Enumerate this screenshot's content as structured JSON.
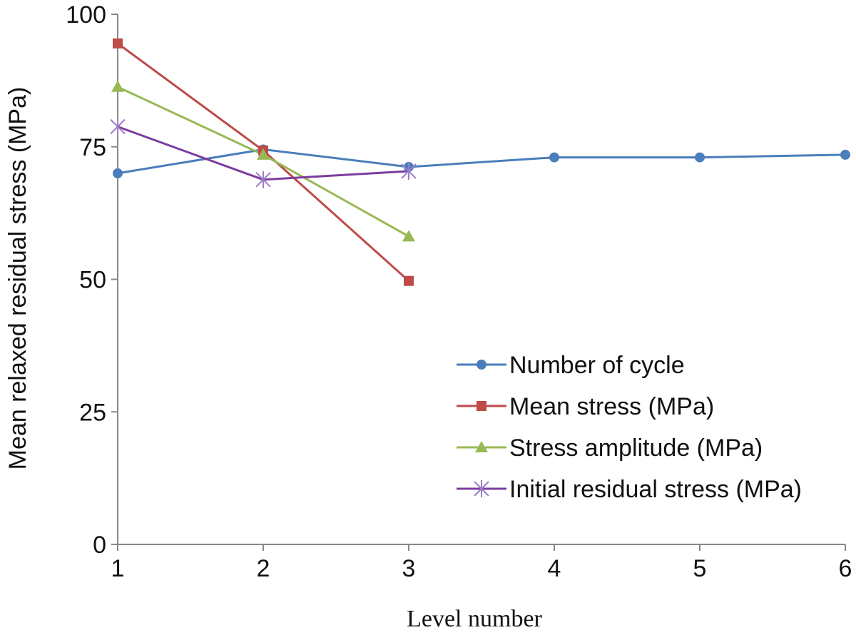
{
  "chart_data": {
    "type": "line",
    "title": "",
    "xlabel": "Level number",
    "ylabel": "Mean relaxed residual stress (MPa)",
    "x": [
      1,
      2,
      3,
      4,
      5,
      6
    ],
    "xlim": [
      1,
      6
    ],
    "ylim": [
      0,
      100
    ],
    "x_ticks": [
      "1",
      "2",
      "3",
      "4",
      "5",
      "6"
    ],
    "y_ticks": [
      "0",
      "25",
      "50",
      "75",
      "100"
    ],
    "grid": false,
    "legend_position": "lower-right",
    "series": [
      {
        "name": "Number of cycle",
        "color": "#4a7ebb",
        "marker": "circle",
        "x": [
          1,
          2,
          3,
          4,
          5,
          6
        ],
        "values": [
          70.0,
          74.5,
          71.2,
          73.0,
          73.0,
          73.5
        ]
      },
      {
        "name": "Mean stress (MPa)",
        "color": "#be4b48",
        "marker": "square",
        "x": [
          1,
          2,
          3
        ],
        "values": [
          94.5,
          74.3,
          49.7
        ]
      },
      {
        "name": "Stress amplitude (MPa)",
        "color": "#98b954",
        "marker": "triangle",
        "x": [
          1,
          2,
          3
        ],
        "values": [
          86.3,
          73.5,
          58.1
        ]
      },
      {
        "name": "Initial residual stress (MPa)",
        "color": "#7d3c9e",
        "marker": "star",
        "x": [
          1,
          2,
          3
        ],
        "values": [
          78.8,
          68.8,
          70.4
        ]
      }
    ]
  }
}
